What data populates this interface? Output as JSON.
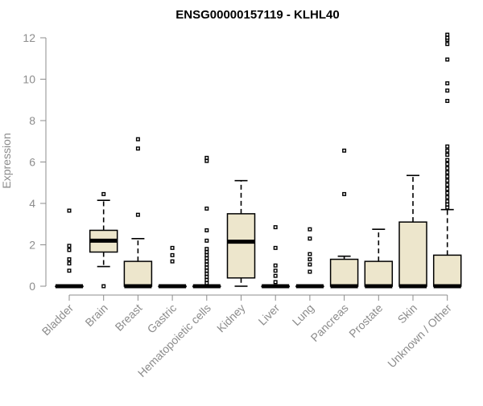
{
  "chart_data": {
    "type": "box",
    "title": "ENSG00000157119 - KLHL40",
    "xlabel": "",
    "ylabel": "Expression",
    "ylim": [
      0,
      12
    ],
    "yticks": [
      0,
      2,
      4,
      6,
      8,
      10,
      12
    ],
    "box_color": "#ede6cc",
    "categories": [
      "Bladder",
      "Brain",
      "Breast",
      "Gastric",
      "Hematopoietic cells",
      "Kidney",
      "Liver",
      "Lung",
      "Pancreas",
      "Prostate",
      "Skin",
      "Unknown / Other"
    ],
    "boxes": [
      {
        "category": "Bladder",
        "whisker_low": 0,
        "q1": 0,
        "median": 0,
        "q3": 0,
        "whisker_high": 0,
        "outliers": [
          0.75,
          1.1,
          1.3,
          1.75,
          1.95,
          3.65
        ]
      },
      {
        "category": "Brain",
        "whisker_low": 0.95,
        "q1": 1.65,
        "median": 2.2,
        "q3": 2.7,
        "whisker_high": 4.15,
        "outliers": [
          0.0,
          4.45
        ]
      },
      {
        "category": "Breast",
        "whisker_low": 0,
        "q1": 0,
        "median": 0,
        "q3": 1.2,
        "whisker_high": 2.3,
        "outliers": [
          3.45,
          6.65,
          7.1
        ]
      },
      {
        "category": "Gastric",
        "whisker_low": 0,
        "q1": 0,
        "median": 0,
        "q3": 0,
        "whisker_high": 0,
        "outliers": [
          1.2,
          1.5,
          1.85
        ]
      },
      {
        "category": "Hematopoietic cells",
        "whisker_low": 0,
        "q1": 0,
        "median": 0,
        "q3": 0,
        "whisker_high": 0,
        "outliers": [
          0.15,
          0.3,
          0.45,
          0.6,
          0.75,
          0.9,
          1.05,
          1.2,
          1.35,
          1.5,
          1.65,
          1.8,
          2.2,
          2.7,
          3.75,
          6.05,
          6.2
        ]
      },
      {
        "category": "Kidney",
        "whisker_low": 0,
        "q1": 0.4,
        "median": 2.15,
        "q3": 3.5,
        "whisker_high": 5.1,
        "outliers": []
      },
      {
        "category": "Liver",
        "whisker_low": 0,
        "q1": 0,
        "median": 0,
        "q3": 0,
        "whisker_high": 0,
        "outliers": [
          0.2,
          0.5,
          0.75,
          1.0,
          1.85,
          2.85
        ]
      },
      {
        "category": "Lung",
        "whisker_low": 0,
        "q1": 0,
        "median": 0,
        "q3": 0,
        "whisker_high": 0,
        "outliers": [
          0.7,
          1.05,
          1.3,
          1.55,
          2.3,
          2.75
        ]
      },
      {
        "category": "Pancreas",
        "whisker_low": 0,
        "q1": 0,
        "median": 0,
        "q3": 1.3,
        "whisker_high": 1.45,
        "outliers": [
          4.45,
          6.55
        ]
      },
      {
        "category": "Prostate",
        "whisker_low": 0,
        "q1": 0,
        "median": 0,
        "q3": 1.2,
        "whisker_high": 2.75,
        "outliers": []
      },
      {
        "category": "Skin",
        "whisker_low": 0,
        "q1": 0,
        "median": 0,
        "q3": 3.1,
        "whisker_high": 5.35,
        "outliers": []
      },
      {
        "category": "Unknown / Other",
        "whisker_low": 0,
        "q1": 0,
        "median": 0,
        "q3": 1.5,
        "whisker_high": 3.7,
        "outliers": [
          3.8,
          3.95,
          4.1,
          4.3,
          4.5,
          4.7,
          4.9,
          5.1,
          5.3,
          5.5,
          5.7,
          5.9,
          6.1,
          6.35,
          6.55,
          6.75,
          8.95,
          9.45,
          9.8,
          10.95,
          11.7,
          11.9,
          12.0,
          12.15
        ]
      }
    ]
  }
}
